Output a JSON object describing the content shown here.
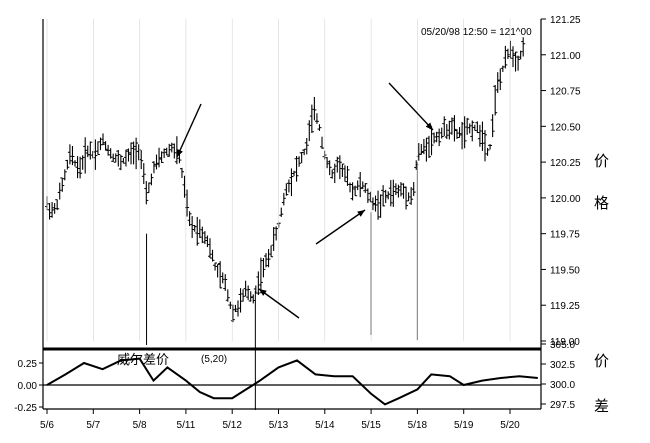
{
  "header": {
    "readout": "05/20/98 12:50 = 121^00"
  },
  "price_axis_label": [
    "价",
    "格"
  ],
  "indicator_axis_label": [
    "价",
    "差"
  ],
  "indicator_label": "威尔差价",
  "indicator_params": "(5,20)",
  "chart_data": [
    {
      "type": "bar",
      "subtype": "ohlc",
      "title": "",
      "ylabel": "价格",
      "ylim": [
        119.0,
        121.25
      ],
      "yticks": [
        119.0,
        119.25,
        119.5,
        119.75,
        120.0,
        120.25,
        120.5,
        120.75,
        121.0,
        121.25
      ],
      "x_ticks": [
        "5/6",
        "5/7",
        "5/8",
        "5/11",
        "5/12",
        "5/13",
        "5/14",
        "5/15",
        "5/18",
        "5/19",
        "5/20"
      ],
      "close_points": [
        [
          0,
          119.95
        ],
        [
          0.15,
          119.9
        ],
        [
          0.3,
          120.05
        ],
        [
          0.5,
          120.3
        ],
        [
          0.7,
          120.2
        ],
        [
          0.9,
          120.35
        ],
        [
          1.0,
          120.3
        ],
        [
          1.2,
          120.4
        ],
        [
          1.4,
          120.3
        ],
        [
          1.6,
          120.25
        ],
        [
          1.8,
          120.3
        ],
        [
          2.0,
          120.35
        ],
        [
          2.15,
          120.0
        ],
        [
          2.3,
          120.2
        ],
        [
          2.5,
          120.3
        ],
        [
          2.7,
          120.35
        ],
        [
          2.85,
          120.3
        ],
        [
          3.0,
          120.0
        ],
        [
          3.1,
          119.8
        ],
        [
          3.3,
          119.78
        ],
        [
          3.45,
          119.72
        ],
        [
          3.65,
          119.5
        ],
        [
          3.85,
          119.4
        ],
        [
          4.0,
          119.2
        ],
        [
          4.15,
          119.25
        ],
        [
          4.3,
          119.35
        ],
        [
          4.45,
          119.3
        ],
        [
          4.6,
          119.45
        ],
        [
          4.8,
          119.6
        ],
        [
          5.0,
          119.8
        ],
        [
          5.15,
          120.05
        ],
        [
          5.3,
          120.15
        ],
        [
          5.45,
          120.25
        ],
        [
          5.6,
          120.35
        ],
        [
          5.75,
          120.6
        ],
        [
          5.85,
          120.55
        ],
        [
          6.0,
          120.3
        ],
        [
          6.15,
          120.15
        ],
        [
          6.3,
          120.25
        ],
        [
          6.45,
          120.15
        ],
        [
          6.6,
          120.05
        ],
        [
          6.8,
          120.1
        ],
        [
          7.0,
          119.98
        ],
        [
          7.15,
          119.95
        ],
        [
          7.3,
          120.0
        ],
        [
          7.5,
          120.05
        ],
        [
          7.7,
          120.05
        ],
        [
          7.9,
          120.0
        ],
        [
          8.0,
          120.3
        ],
        [
          8.15,
          120.35
        ],
        [
          8.3,
          120.4
        ],
        [
          8.5,
          120.45
        ],
        [
          8.7,
          120.5
        ],
        [
          8.85,
          120.45
        ],
        [
          9.0,
          120.45
        ],
        [
          9.2,
          120.5
        ],
        [
          9.4,
          120.45
        ],
        [
          9.55,
          120.3
        ],
        [
          9.7,
          120.75
        ],
        [
          9.85,
          120.9
        ],
        [
          10.0,
          121.05
        ],
        [
          10.15,
          120.95
        ],
        [
          10.3,
          121.05
        ]
      ],
      "annotations": [
        {
          "type": "arrow",
          "label": ""
        },
        {
          "type": "arrow",
          "label": ""
        },
        {
          "type": "arrow",
          "label": ""
        },
        {
          "type": "arrow",
          "label": ""
        }
      ]
    },
    {
      "type": "line",
      "title": "",
      "ylabel": "价差",
      "left_ylim": [
        -0.25,
        0.25
      ],
      "left_yticks": [
        -0.25,
        0.0,
        0.25
      ],
      "right_ylim": [
        297.5,
        305.0
      ],
      "right_yticks": [
        297.5,
        300.0,
        302.5,
        305.0
      ],
      "horizontal_lines": [
        0.0,
        0.36
      ],
      "series": [
        {
          "values": [
            [
              0,
              0.0
            ],
            [
              0.4,
              0.12
            ],
            [
              0.8,
              0.25
            ],
            [
              1.2,
              0.18
            ],
            [
              1.6,
              0.28
            ],
            [
              2.0,
              0.3
            ],
            [
              2.3,
              0.05
            ],
            [
              2.6,
              0.2
            ],
            [
              3.0,
              0.05
            ],
            [
              3.3,
              -0.08
            ],
            [
              3.6,
              -0.15
            ],
            [
              4.0,
              -0.15
            ],
            [
              4.3,
              -0.05
            ],
            [
              4.6,
              0.05
            ],
            [
              5.0,
              0.2
            ],
            [
              5.4,
              0.28
            ],
            [
              5.8,
              0.12
            ],
            [
              6.2,
              0.1
            ],
            [
              6.6,
              0.1
            ],
            [
              7.0,
              -0.1
            ],
            [
              7.3,
              -0.22
            ],
            [
              7.6,
              -0.15
            ],
            [
              8.0,
              -0.05
            ],
            [
              8.3,
              0.12
            ],
            [
              8.7,
              0.1
            ],
            [
              9.0,
              0.0
            ],
            [
              9.4,
              0.05
            ],
            [
              9.8,
              0.08
            ],
            [
              10.2,
              0.1
            ],
            [
              10.6,
              0.08
            ]
          ]
        }
      ]
    }
  ]
}
